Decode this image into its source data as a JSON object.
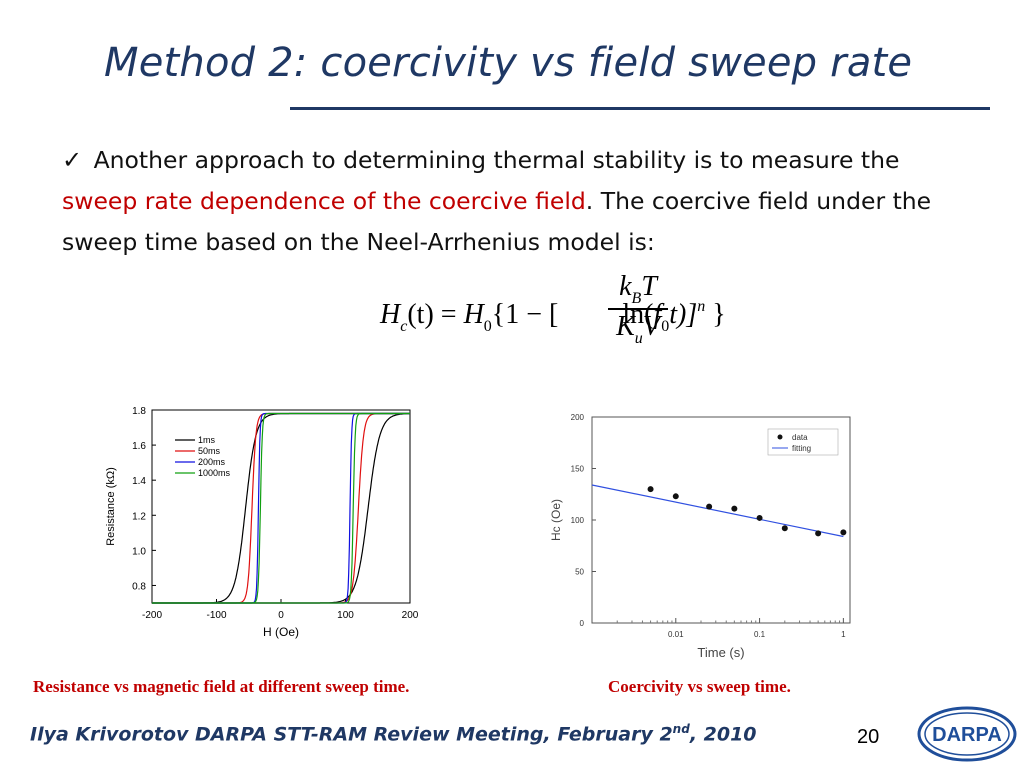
{
  "slide": {
    "title": "Method 2: coercivity vs field sweep rate",
    "body": {
      "check": "✓",
      "p1": " Another approach to determining thermal stability is to measure the ",
      "highlight": "sweep rate dependence of the coercive field",
      "p2": ". The coercive field under the sweep time based on the Neel-Arrhenius model is:"
    },
    "formula": {
      "lhs_H": "H",
      "lhs_sub": "c",
      "lhs_t": "(t) = ",
      "H0": "H",
      "H0_sub": "0",
      "open": "{1 − [",
      "num_k": "k",
      "num_sub": "B",
      "num_T": "T",
      "den_K": "K",
      "den_sub": "u",
      "den_V": "V",
      "ln": "ln(",
      "f": "f",
      "f_sub": "0",
      "t_close": "t)]",
      "exp": "n",
      "close": " }"
    },
    "caption_left": "Resistance vs magnetic field at different sweep time.",
    "caption_right": "Coercivity vs sweep time.",
    "footer": "Ilya Krivorotov  DARPA STT-RAM Review Meeting, February 2",
    "footer_sup": "nd",
    "footer_end": ", 2010",
    "page_number": "20",
    "logo_text": "DARPA",
    "colors": {
      "title": "#1f3864",
      "highlight": "#c00000",
      "caption": "#c00000"
    }
  },
  "chart_data": [
    {
      "type": "line",
      "title": "",
      "xlabel": "H (Oe)",
      "ylabel": "Resistance (kΩ)",
      "xlim": [
        -200,
        200
      ],
      "ylim": [
        0.7,
        1.8
      ],
      "xticks": [
        -200,
        -100,
        0,
        100,
        200
      ],
      "yticks": [
        0.8,
        1.0,
        1.2,
        1.4,
        1.6,
        1.8
      ],
      "legend_position": "top-left",
      "series": [
        {
          "name": "1ms",
          "color": "#000000",
          "sweep_up_switch": 135,
          "sweep_down_switch": -55
        },
        {
          "name": "50ms",
          "color": "#e01010",
          "sweep_up_switch": 120,
          "sweep_down_switch": -45
        },
        {
          "name": "200ms",
          "color": "#1010e0",
          "sweep_up_switch": 107,
          "sweep_down_switch": -35
        },
        {
          "name": "1000ms",
          "color": "#10a010",
          "sweep_up_switch": 112,
          "sweep_down_switch": -32
        }
      ],
      "R_low": 0.7,
      "R_high": 1.78
    },
    {
      "type": "scatter",
      "title": "",
      "xlabel": "Time (s)",
      "ylabel": "Hc (Oe)",
      "x_scale": "log",
      "xlim": [
        0.001,
        1.2
      ],
      "ylim": [
        0,
        200
      ],
      "xticks": [
        "0.01",
        "0.1",
        "1"
      ],
      "yticks": [
        0,
        50,
        100,
        150,
        200
      ],
      "legend_position": "top-right",
      "series": [
        {
          "name": "data",
          "x": [
            0.005,
            0.01,
            0.025,
            0.05,
            0.1,
            0.2,
            0.5,
            1.0
          ],
          "y": [
            130,
            123,
            113,
            111,
            102,
            92,
            87,
            88
          ]
        },
        {
          "name": "fitting",
          "x": [
            0.001,
            1.0
          ],
          "y": [
            134,
            84
          ]
        }
      ]
    }
  ]
}
